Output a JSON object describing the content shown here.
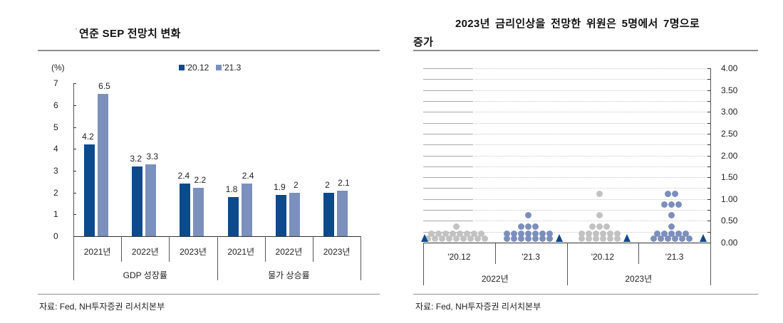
{
  "left_panel": {
    "title_marker": "·",
    "title": "연준 SEP 전망치 변화",
    "source": "자료: Fed, NH투자증권 리서치본부"
  },
  "right_panel": {
    "title_line1": "2023년  금리인상을  전망한  위원은  5명에서  7명으로",
    "title_line2": "증가",
    "source": "자료: Fed, NH투자증권 리서치본부"
  },
  "colors": {
    "series_2012": "#0d4a8c",
    "series_213": "#7c90bd",
    "dot_gray": "#c2c2c2",
    "dot_blue": "#7c8fbc",
    "median_triangle": "#0d4a8c",
    "rule": "#8c8c8c"
  },
  "chart_data": [
    {
      "type": "bar",
      "title": "연준 SEP 전망치 변화",
      "ylabel": "(%)",
      "ylim": [
        0,
        7
      ],
      "yticks": [
        "0",
        "1",
        "2",
        "3",
        "4",
        "5",
        "6",
        "7"
      ],
      "legend_position": "top",
      "categories": [
        "2021년",
        "2022년",
        "2023년",
        "2021년",
        "2022년",
        "2023년"
      ],
      "category_groups": [
        {
          "label": "GDP 성장률",
          "span": [
            0,
            2
          ]
        },
        {
          "label": "물가 상승률",
          "span": [
            3,
            5
          ]
        }
      ],
      "series": [
        {
          "name": "'20.12",
          "values": [
            4.2,
            3.2,
            2.4,
            1.8,
            1.9,
            2.0
          ],
          "labels": [
            "4.2",
            "3.2",
            "2.4",
            "1.8",
            "1.9",
            "2"
          ]
        },
        {
          "name": "'21.3",
          "values": [
            6.5,
            3.3,
            2.2,
            2.4,
            2.0,
            2.1
          ],
          "labels": [
            "6.5",
            "3.3",
            "2.2",
            "2.4",
            "2",
            "2.1"
          ]
        }
      ],
      "grid": false
    },
    {
      "type": "scatter",
      "subtype": "fomc-dot-plot",
      "title": "2023년 금리인상을 전망한 위원은 5명에서 7명으로 증가",
      "ylim": [
        0,
        4
      ],
      "yticks": [
        "0.00",
        "0.50",
        "1.00",
        "1.50",
        "2.00",
        "2.50",
        "3.00",
        "3.50",
        "4.00"
      ],
      "y_axis_position": "right",
      "grid": "dotted horizontal at 0.25 steps",
      "categories": [
        "'20.12",
        "'21.3",
        "'20.12",
        "'21.3"
      ],
      "category_groups": [
        {
          "label": "2022년",
          "span": [
            0,
            1
          ]
        },
        {
          "label": "2023년",
          "span": [
            2,
            3
          ]
        }
      ],
      "series": [
        {
          "name": "2022년 '20.12",
          "dots": [
            {
              "rate": 0.125,
              "count": 17
            },
            {
              "rate": 0.375,
              "count": 1
            }
          ],
          "median": 0.125
        },
        {
          "name": "2022년 '21.3",
          "dots": [
            {
              "rate": 0.125,
              "count": 14
            },
            {
              "rate": 0.375,
              "count": 3
            },
            {
              "rate": 0.625,
              "count": 1
            }
          ],
          "median": 0.125
        },
        {
          "name": "2023년 '20.12",
          "dots": [
            {
              "rate": 0.125,
              "count": 12
            },
            {
              "rate": 0.375,
              "count": 3
            },
            {
              "rate": 0.625,
              "count": 1
            },
            {
              "rate": 1.125,
              "count": 1
            }
          ],
          "median": 0.125
        },
        {
          "name": "2023년 '21.3",
          "dots": [
            {
              "rate": 0.125,
              "count": 11
            },
            {
              "rate": 0.375,
              "count": 1
            },
            {
              "rate": 0.625,
              "count": 1
            },
            {
              "rate": 0.875,
              "count": 3
            },
            {
              "rate": 1.125,
              "count": 2
            }
          ],
          "median": 0.125
        }
      ]
    }
  ]
}
